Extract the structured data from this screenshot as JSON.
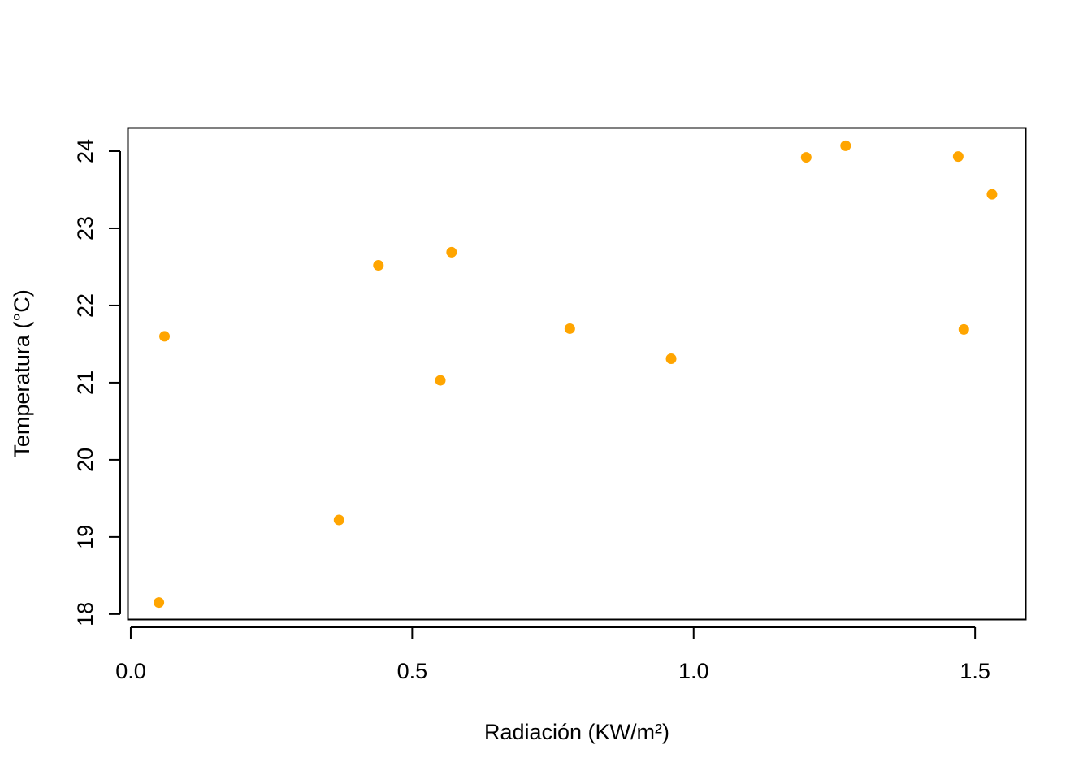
{
  "chart_data": {
    "type": "scatter",
    "title": "",
    "xlabel": "Radiación (KW/m²)",
    "ylabel": "Temperatura (°C)",
    "xlim": [
      -0.005,
      1.59
    ],
    "ylim": [
      17.93,
      24.3
    ],
    "x_ticks": [
      0.0,
      0.5,
      1.0,
      1.5
    ],
    "x_tick_labels": [
      "0.0",
      "0.5",
      "1.0",
      "1.5"
    ],
    "y_ticks": [
      18,
      19,
      20,
      21,
      22,
      23,
      24
    ],
    "y_tick_labels": [
      "18",
      "19",
      "20",
      "21",
      "22",
      "23",
      "24"
    ],
    "grid": false,
    "legend": "none",
    "marker_color": "#FFA500",
    "series": [
      {
        "points": [
          {
            "x": 0.05,
            "y": 18.15
          },
          {
            "x": 0.06,
            "y": 21.6
          },
          {
            "x": 0.37,
            "y": 19.22
          },
          {
            "x": 0.44,
            "y": 22.52
          },
          {
            "x": 0.55,
            "y": 21.03
          },
          {
            "x": 0.57,
            "y": 22.69
          },
          {
            "x": 0.78,
            "y": 21.7
          },
          {
            "x": 0.96,
            "y": 21.31
          },
          {
            "x": 1.2,
            "y": 23.92
          },
          {
            "x": 1.27,
            "y": 24.07
          },
          {
            "x": 1.47,
            "y": 23.93
          },
          {
            "x": 1.48,
            "y": 21.69
          },
          {
            "x": 1.53,
            "y": 23.44
          }
        ]
      }
    ]
  }
}
